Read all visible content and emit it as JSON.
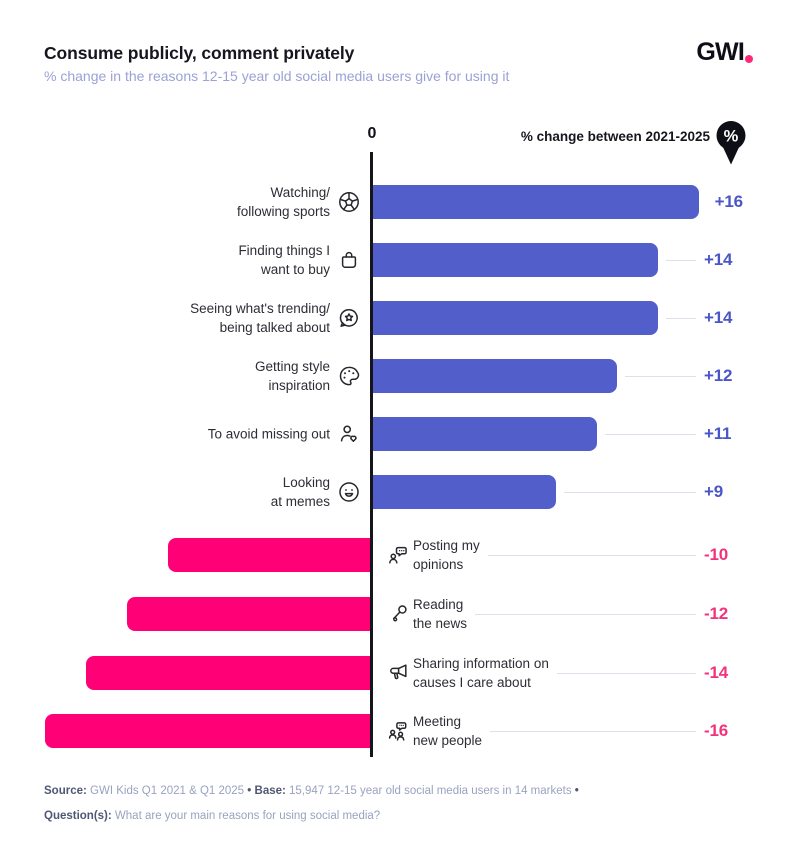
{
  "header": {
    "title": "Consume publicly, comment privately",
    "subtitle": "% change in the reasons 12-15 year old social media users give for using it",
    "logo": {
      "text": "GWI"
    }
  },
  "chart_header": {
    "zero_label": "0",
    "legend_label": "% change between 2021-2025",
    "badge_symbol": "%"
  },
  "rows": [
    {
      "label_lines": [
        "Watching/",
        "following sports"
      ],
      "icon": "soccer-ball-icon",
      "value": 16,
      "value_label": "+16",
      "sign": "positive"
    },
    {
      "label_lines": [
        "Finding things I",
        "want to buy"
      ],
      "icon": "shopping-bag-icon",
      "value": 14,
      "value_label": "+14",
      "sign": "positive"
    },
    {
      "label_lines": [
        "Seeing what's trending/",
        "being talked about"
      ],
      "icon": "chat-star-icon",
      "value": 14,
      "value_label": "+14",
      "sign": "positive"
    },
    {
      "label_lines": [
        "Getting style",
        "inspiration"
      ],
      "icon": "palette-icon",
      "value": 12,
      "value_label": "+12",
      "sign": "positive"
    },
    {
      "label_lines": [
        "To avoid missing out"
      ],
      "icon": "user-heart-icon",
      "value": 11,
      "value_label": "+11",
      "sign": "positive"
    },
    {
      "label_lines": [
        "Looking",
        "at memes"
      ],
      "icon": "smiley-icon",
      "value": 9,
      "value_label": "+9",
      "sign": "positive"
    },
    {
      "label_lines": [
        "Posting my",
        "opinions"
      ],
      "icon": "person-chat-icon",
      "value": -10,
      "value_label": "-10",
      "sign": "negative"
    },
    {
      "label_lines": [
        "Reading",
        "the news"
      ],
      "icon": "microphone-icon",
      "value": -12,
      "value_label": "-12",
      "sign": "negative"
    },
    {
      "label_lines": [
        "Sharing information on",
        "causes I care about"
      ],
      "icon": "megaphone-icon",
      "value": -14,
      "value_label": "-14",
      "sign": "negative"
    },
    {
      "label_lines": [
        "Meeting",
        "new people"
      ],
      "icon": "people-chat-icon",
      "value": -16,
      "value_label": "-16",
      "sign": "negative"
    }
  ],
  "footer": {
    "source_label": "Source:",
    "source_text": " GWI Kids Q1 2021 & Q1 2025 ",
    "sep1": "•",
    "base_label": " Base:",
    "base_text": " 15,947 12-15 year old social media users in 14 markets ",
    "sep2": "•",
    "question_label": "Question(s):",
    "question_text": " What are your main reasons for using social media?"
  },
  "colors": {
    "positive_bar": "#525ec9",
    "positive_value": "#4a56c8",
    "negative_bar": "#ff0077",
    "negative_value": "#f2337c",
    "connector": "#dde0ea",
    "axis": "#15151c",
    "logo_dot": "#ff2a77"
  },
  "chart_data": {
    "type": "bar",
    "orientation": "horizontal",
    "diverging": true,
    "title": "Consume publicly, comment privately",
    "subtitle": "% change in the reasons 12-15 year old social media users give for using it",
    "unit_note": "% change between 2021-2025",
    "categories": [
      "Watching/following sports",
      "Finding things I want to buy",
      "Seeing what's trending/being talked about",
      "Getting style inspiration",
      "To avoid missing out",
      "Looking at memes",
      "Posting my opinions",
      "Reading the news",
      "Sharing information on causes I care about",
      "Meeting new people"
    ],
    "values": [
      16,
      14,
      14,
      12,
      11,
      9,
      -10,
      -12,
      -14,
      -16
    ],
    "xlim": [
      -16,
      16
    ],
    "baseline_label": "0",
    "grid": false,
    "legend_position": "top-right"
  }
}
